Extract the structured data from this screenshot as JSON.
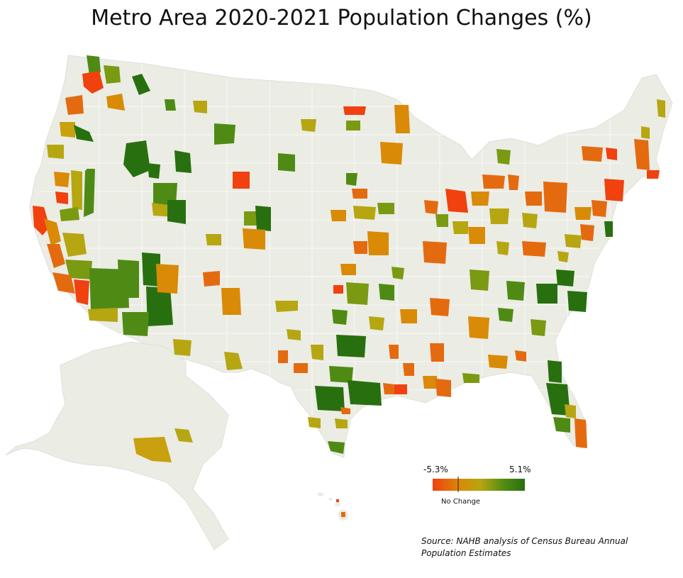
{
  "title": "Metro Area 2020-2021 Population Changes (%)",
  "legend": {
    "min_label": "-5.3%",
    "max_label": "5.1%",
    "mid_label": "No Change",
    "min_value": -5.3,
    "max_value": 5.1,
    "colors": [
      "#f0410f",
      "#d98a06",
      "#b6a611",
      "#4f8b14",
      "#28700f"
    ]
  },
  "source": "Source: NAHB analysis of Census Bureau Annual Population Estimates",
  "colors": {
    "land": "#ebece4",
    "county_lines": "#ffffff"
  }
}
